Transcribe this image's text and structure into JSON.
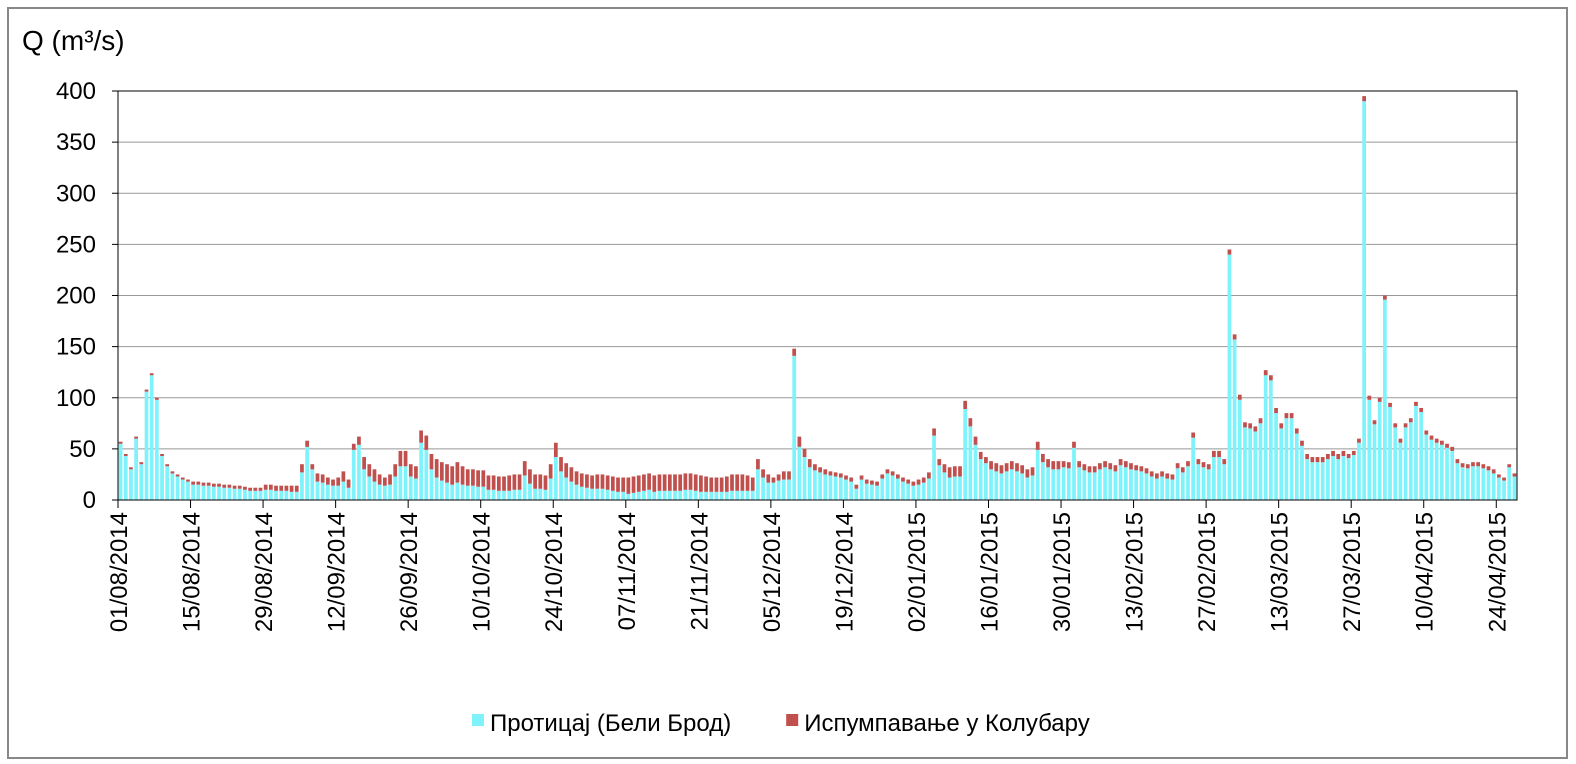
{
  "chart_data": {
    "type": "bar",
    "stacked": true,
    "title": "Q (m³/s)",
    "categories": [
      "01/08/2014",
      null,
      null,
      null,
      null,
      null,
      null,
      null,
      null,
      null,
      null,
      null,
      null,
      null,
      "15/08/2014",
      null,
      null,
      null,
      null,
      null,
      null,
      null,
      null,
      null,
      null,
      null,
      null,
      null,
      "29/08/2014",
      null,
      null,
      null,
      null,
      null,
      null,
      null,
      null,
      null,
      null,
      null,
      null,
      null,
      "12/09/2014",
      null,
      null,
      null,
      null,
      null,
      null,
      null,
      null,
      null,
      null,
      null,
      null,
      null,
      "26/09/2014",
      null,
      null,
      null,
      null,
      null,
      null,
      null,
      null,
      null,
      null,
      null,
      null,
      null,
      "10/10/2014",
      null,
      null,
      null,
      null,
      null,
      null,
      null,
      null,
      null,
      null,
      null,
      null,
      null,
      "24/10/2014",
      null,
      null,
      null,
      null,
      null,
      null,
      null,
      null,
      null,
      null,
      null,
      null,
      null,
      "07/11/2014",
      null,
      null,
      null,
      null,
      null,
      null,
      null,
      null,
      null,
      null,
      null,
      null,
      null,
      "21/11/2014",
      null,
      null,
      null,
      null,
      null,
      null,
      null,
      null,
      null,
      null,
      null,
      null,
      null,
      "05/12/2014",
      null,
      null,
      null,
      null,
      null,
      null,
      null,
      null,
      null,
      null,
      null,
      null,
      null,
      "19/12/2014",
      null,
      null,
      null,
      null,
      null,
      null,
      null,
      null,
      null,
      null,
      null,
      null,
      null,
      "02/01/2015",
      null,
      null,
      null,
      null,
      null,
      null,
      null,
      null,
      null,
      null,
      null,
      null,
      null,
      "16/01/2015",
      null,
      null,
      null,
      null,
      null,
      null,
      null,
      null,
      null,
      null,
      null,
      null,
      null,
      "30/01/2015",
      null,
      null,
      null,
      null,
      null,
      null,
      null,
      null,
      null,
      null,
      null,
      null,
      null,
      "13/02/2015",
      null,
      null,
      null,
      null,
      null,
      null,
      null,
      null,
      null,
      null,
      null,
      null,
      null,
      "27/02/2015",
      null,
      null,
      null,
      null,
      null,
      null,
      null,
      null,
      null,
      null,
      null,
      null,
      null,
      "13/03/2015",
      null,
      null,
      null,
      null,
      null,
      null,
      null,
      null,
      null,
      null,
      null,
      null,
      null,
      "27/03/2015",
      null,
      null,
      null,
      null,
      null,
      null,
      null,
      null,
      null,
      null,
      null,
      null,
      null,
      "10/04/2015",
      null,
      null,
      null,
      null,
      null,
      null,
      null,
      null,
      null,
      null,
      null,
      null,
      null,
      "24/04/2015",
      null,
      null,
      null
    ],
    "series": [
      {
        "name": "Протицај (Бели Брод)",
        "color": "#7ff3fb",
        "values": [
          55,
          43,
          30,
          60,
          35,
          106,
          122,
          98,
          43,
          33,
          26,
          23,
          20,
          18,
          15,
          15,
          14,
          14,
          13,
          13,
          12,
          12,
          11,
          11,
          10,
          9,
          9,
          9,
          10,
          10,
          9,
          9,
          9,
          8,
          8,
          27,
          52,
          30,
          18,
          17,
          15,
          14,
          14,
          18,
          12,
          49,
          54,
          30,
          23,
          18,
          15,
          14,
          15,
          23,
          33,
          33,
          23,
          21,
          56,
          49,
          30,
          22,
          19,
          17,
          15,
          17,
          15,
          14,
          14,
          13,
          13,
          10,
          10,
          9,
          9,
          9,
          10,
          10,
          24,
          16,
          11,
          11,
          10,
          21,
          42,
          28,
          22,
          18,
          15,
          13,
          12,
          11,
          11,
          11,
          10,
          9,
          8,
          8,
          6,
          7,
          8,
          9,
          10,
          8,
          9,
          9,
          9,
          9,
          9,
          10,
          10,
          9,
          8,
          8,
          8,
          8,
          8,
          8,
          9,
          9,
          9,
          9,
          9,
          30,
          22,
          17,
          17,
          19,
          20,
          20,
          141,
          52,
          42,
          32,
          29,
          27,
          25,
          24,
          23,
          22,
          20,
          18,
          11,
          20,
          16,
          15,
          14,
          21,
          26,
          24,
          21,
          18,
          16,
          14,
          15,
          17,
          21,
          63,
          34,
          27,
          22,
          23,
          23,
          89,
          72,
          54,
          40,
          36,
          30,
          28,
          26,
          28,
          30,
          28,
          26,
          22,
          24,
          49,
          37,
          32,
          30,
          30,
          32,
          31,
          51,
          32,
          29,
          27,
          27,
          30,
          32,
          30,
          28,
          34,
          32,
          30,
          29,
          28,
          26,
          23,
          21,
          23,
          21,
          20,
          31,
          27,
          33,
          61,
          35,
          32,
          30,
          42,
          42,
          35,
          240,
          157,
          98,
          71,
          70,
          67,
          75,
          122,
          117,
          85,
          70,
          80,
          80,
          65,
          53,
          40,
          37,
          37,
          37,
          40,
          43,
          40,
          43,
          41,
          44,
          56,
          390,
          98,
          74,
          96,
          196,
          91,
          71,
          56,
          71,
          76,
          92,
          86,
          64,
          59,
          56,
          54,
          51,
          48,
          36,
          32,
          31,
          33,
          33,
          31,
          29,
          26,
          22,
          19,
          32,
          23
        ]
      },
      {
        "name": "Испумпавање у Колубару",
        "color": "#c0504d",
        "values": [
          2,
          2,
          2,
          2,
          2,
          2,
          2,
          2,
          2,
          2,
          2,
          2,
          2,
          2,
          3,
          3,
          3,
          3,
          3,
          3,
          3,
          3,
          3,
          3,
          3,
          3,
          3,
          3,
          5,
          5,
          5,
          5,
          5,
          6,
          6,
          8,
          6,
          5,
          8,
          8,
          7,
          6,
          8,
          10,
          8,
          6,
          8,
          12,
          12,
          12,
          10,
          8,
          10,
          12,
          15,
          15,
          12,
          12,
          12,
          14,
          15,
          18,
          18,
          18,
          18,
          20,
          18,
          16,
          16,
          16,
          16,
          14,
          14,
          14,
          14,
          15,
          15,
          15,
          14,
          14,
          14,
          14,
          14,
          14,
          14,
          14,
          14,
          14,
          13,
          13,
          13,
          13,
          14,
          14,
          14,
          14,
          14,
          14,
          16,
          16,
          16,
          16,
          16,
          16,
          16,
          16,
          16,
          16,
          16,
          16,
          16,
          16,
          16,
          15,
          14,
          14,
          14,
          15,
          16,
          16,
          16,
          15,
          13,
          10,
          8,
          8,
          5,
          6,
          8,
          8,
          7,
          10,
          8,
          8,
          6,
          5,
          5,
          4,
          4,
          4,
          4,
          4,
          4,
          4,
          4,
          4,
          4,
          4,
          4,
          4,
          4,
          4,
          4,
          4,
          5,
          5,
          6,
          7,
          6,
          8,
          10,
          10,
          10,
          8,
          8,
          8,
          7,
          6,
          8,
          8,
          8,
          8,
          8,
          8,
          8,
          8,
          8,
          8,
          8,
          8,
          8,
          8,
          6,
          6,
          6,
          6,
          6,
          6,
          6,
          6,
          6,
          6,
          6,
          6,
          6,
          6,
          5,
          5,
          5,
          5,
          5,
          5,
          5,
          5,
          5,
          5,
          5,
          5,
          5,
          5,
          5,
          6,
          6,
          5,
          5,
          5,
          5,
          5,
          5,
          5,
          5,
          5,
          5,
          5,
          5,
          5,
          5,
          5,
          5,
          5,
          5,
          5,
          5,
          5,
          5,
          5,
          5,
          4,
          4,
          4,
          5,
          4,
          4,
          4,
          4,
          4,
          4,
          4,
          4,
          4,
          4,
          4,
          4,
          4,
          4,
          4,
          4,
          4,
          4,
          4,
          4,
          4,
          4,
          4,
          4,
          4,
          3,
          3,
          3,
          3
        ]
      }
    ],
    "ylim": [
      0,
      400
    ],
    "yticks": [
      0,
      50,
      100,
      150,
      200,
      250,
      300,
      350,
      400
    ],
    "grid": true,
    "legend": "bottom"
  }
}
